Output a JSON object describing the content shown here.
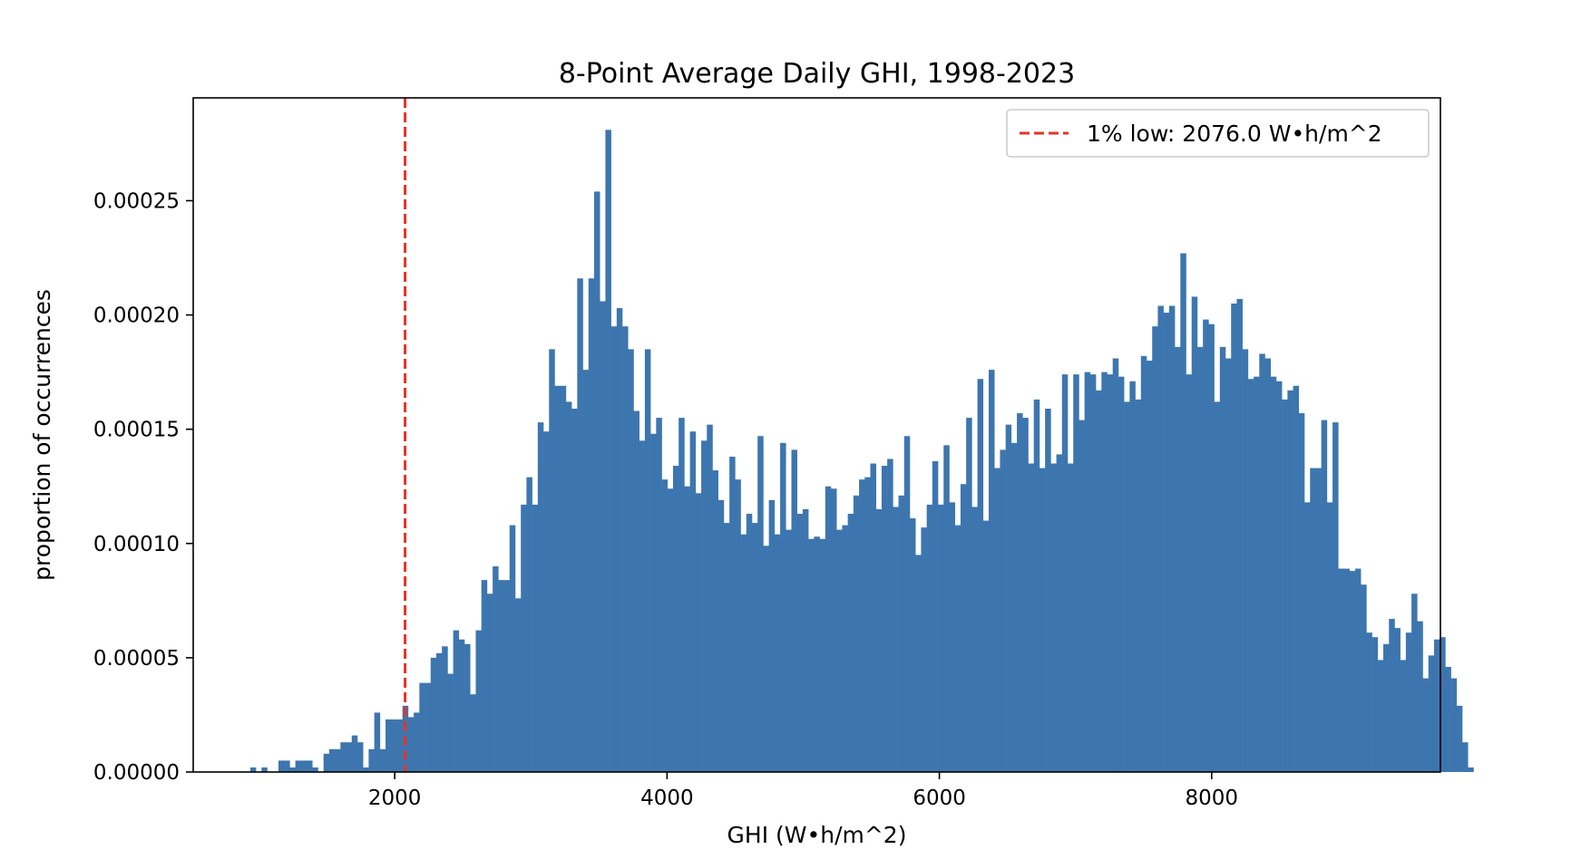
{
  "chart_data": {
    "type": "bar",
    "title": "8-Point Average Daily GHI, 1998-2023",
    "xlabel": "GHI (W•h/m^2)",
    "ylabel": "proportion of occurrences",
    "xlim": [
      520,
      9680
    ],
    "ylim": [
      0,
      0.000295
    ],
    "x_ticks": [
      2000,
      4000,
      6000,
      8000
    ],
    "x_tick_labels": [
      "2000",
      "4000",
      "6000",
      "8000"
    ],
    "y_ticks": [
      0,
      5e-05,
      0.0001,
      0.00015,
      0.0002,
      0.00025
    ],
    "y_tick_labels": [
      "0.00000",
      "0.00005",
      "0.00010",
      "0.00015",
      "0.00020",
      "0.00025"
    ],
    "bar_color": "#3d76af",
    "bin_start": 939,
    "bin_width": 41.4,
    "values": [
      2e-06,
      0,
      2e-06,
      0,
      0,
      5e-06,
      5e-06,
      2e-06,
      5e-06,
      5e-06,
      5e-06,
      2e-06,
      0,
      8e-06,
      1e-05,
      1e-05,
      1.3e-05,
      1.3e-05,
      1.6e-05,
      1.3e-05,
      2e-06,
      1e-05,
      2.6e-05,
      1e-05,
      2.3e-05,
      2.3e-05,
      2.3e-05,
      2.9e-05,
      2.4e-05,
      2.6e-05,
      3.9e-05,
      3.9e-05,
      5e-05,
      5.2e-05,
      5.5e-05,
      4.3e-05,
      6.2e-05,
      5.8e-05,
      5.6e-05,
      3.4e-05,
      6.2e-05,
      8.4e-05,
      7.8e-05,
      9e-05,
      8.4e-05,
      8.4e-05,
      0.000108,
      7.6e-05,
      0.000117,
      0.000129,
      0.000117,
      0.000153,
      0.000149,
      0.000185,
      0.000169,
      0.000169,
      0.000162,
      0.000159,
      0.000216,
      0.000176,
      0.000216,
      0.000254,
      0.000206,
      0.000281,
      0.000195,
      0.000203,
      0.000195,
      0.000185,
      0.000158,
      0.000145,
      0.000185,
      0.000148,
      0.000155,
      0.000128,
      0.000124,
      0.000134,
      0.000155,
      0.000125,
      0.000149,
      0.000122,
      0.000145,
      0.000152,
      0.000132,
      0.000119,
      0.000109,
      0.000138,
      0.000128,
      0.000104,
      0.000113,
      0.000109,
      0.000147,
      9.9e-05,
      0.000119,
      0.000104,
      0.000144,
      0.000106,
      0.000141,
      0.000113,
      0.000115,
      0.000102,
      0.000103,
      0.000102,
      0.000125,
      0.000124,
      0.000106,
      0.000108,
      0.000113,
      0.000121,
      0.000128,
      0.000129,
      0.000135,
      0.000115,
      0.000134,
      0.000137,
      0.000116,
      0.000121,
      0.000147,
      0.000111,
      9.5e-05,
      0.000107,
      0.000117,
      0.000136,
      0.000117,
      0.000143,
      0.000118,
      0.000108,
      0.000126,
      0.000155,
      0.000116,
      0.000172,
      0.00011,
      0.000176,
      0.000133,
      0.000141,
      0.000152,
      0.000144,
      0.000157,
      0.000155,
      0.000135,
      0.000163,
      0.000133,
      0.000159,
      0.000135,
      0.000139,
      0.000174,
      0.000135,
      0.000174,
      0.000154,
      0.000175,
      0.000174,
      0.000167,
      0.000175,
      0.000174,
      0.000181,
      0.000173,
      0.000162,
      0.000171,
      0.000163,
      0.000182,
      0.00018,
      0.000195,
      0.000204,
      0.000201,
      0.000204,
      0.000186,
      0.000227,
      0.000174,
      0.000208,
      0.000186,
      0.000198,
      0.000196,
      0.000162,
      0.000186,
      0.000181,
      0.000205,
      0.000207,
      0.000185,
      0.000172,
      0.000173,
      0.000183,
      0.000181,
      0.000173,
      0.000171,
      0.000163,
      0.000167,
      0.000169,
      0.000157,
      0.000118,
      0.000133,
      0.000133,
      0.000154,
      0.000118,
      0.000153,
      8.9e-05,
      8.9e-05,
      8.8e-05,
      8.9e-05,
      8.2e-05,
      6.1e-05,
      5.9e-05,
      4.9e-05,
      5.6e-05,
      6.7e-05,
      6.3e-05,
      4.9e-05,
      6.1e-05,
      7.8e-05,
      6.6e-05,
      4.1e-05,
      5.1e-05,
      5.8e-05,
      5.9e-05,
      4.6e-05,
      4.1e-05,
      2.9e-05,
      1.3e-05,
      2e-06
    ],
    "reference_line": {
      "x": 2076.0,
      "style": "dashed",
      "color": "#e63228",
      "label": "1% low: 2076.0 W•h/m^2"
    },
    "legend_position": "top-right",
    "grid": false
  }
}
